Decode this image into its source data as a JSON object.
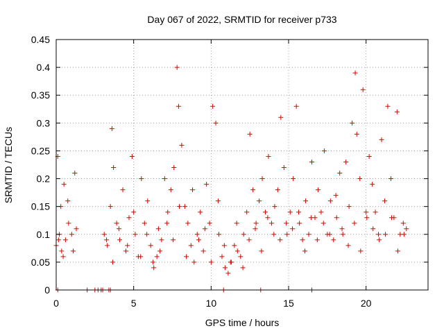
{
  "chart_data": {
    "type": "scatter",
    "title": "Day 067 of 2022, SRMTID for receiver p733",
    "xlabel": "GPS time / hours",
    "ylabel": "SRMTID / TECUs",
    "xlim": [
      0,
      24
    ],
    "ylim": [
      0,
      0.45
    ],
    "xticks": [
      0,
      5,
      10,
      15,
      20
    ],
    "xtick_labels": [
      "0",
      "5",
      "10",
      "15",
      "20"
    ],
    "yticks": [
      0,
      0.05,
      0.1,
      0.15,
      0.2,
      0.25,
      0.3,
      0.35,
      0.4,
      0.45
    ],
    "ytick_labels": [
      "0",
      "0.05",
      "0.1",
      "0.15",
      "0.2",
      "0.25",
      "0.3",
      "0.35",
      "0.4",
      "0.45"
    ],
    "grid": true,
    "marker": "plus",
    "color": "#dd0000",
    "series": [
      {
        "name": "SRMTID",
        "x": [
          0.0,
          0.1,
          0.2,
          0.3,
          0.35,
          0.5,
          0.6,
          0.8,
          1.0,
          1.2,
          1.3,
          3.1,
          3.3,
          3.5,
          3.6,
          3.7,
          3.9,
          4.1,
          4.3,
          4.5,
          4.7,
          4.9,
          5.1,
          5.3,
          5.5,
          5.7,
          5.9,
          6.1,
          6.3,
          6.5,
          6.6,
          6.8,
          7.0,
          7.2,
          7.4,
          7.6,
          7.8,
          7.9,
          8.1,
          8.3,
          8.5,
          8.7,
          8.9,
          9.1,
          9.3,
          9.5,
          9.7,
          9.9,
          10.1,
          10.3,
          10.5,
          10.7,
          10.9,
          11.1,
          11.3,
          11.5,
          11.7,
          11.9,
          12.1,
          12.3,
          12.5,
          12.7,
          12.9,
          13.1,
          13.3,
          13.5,
          13.7,
          13.9,
          14.1,
          14.3,
          14.5,
          14.7,
          14.9,
          15.1,
          15.3,
          15.5,
          15.7,
          15.9,
          16.1,
          16.3,
          16.5,
          16.7,
          16.9,
          17.1,
          17.3,
          17.5,
          17.7,
          17.9,
          18.1,
          18.3,
          18.5,
          18.7,
          18.9,
          19.1,
          19.3,
          19.4,
          19.6,
          19.8,
          20.0,
          20.2,
          20.4,
          20.6,
          20.8,
          21.0,
          21.2,
          21.4,
          21.6,
          21.8,
          22.0,
          22.2,
          22.4,
          22.6,
          0.15,
          0.45,
          0.75,
          1.1,
          3.25,
          3.65,
          4.05,
          4.6,
          5.0,
          5.45,
          5.85,
          6.25,
          6.7,
          7.15,
          7.55,
          7.95,
          8.4,
          8.8,
          9.2,
          9.6,
          10.0,
          10.45,
          10.85,
          11.25,
          11.65,
          12.05,
          12.45,
          12.85,
          13.25,
          13.65,
          14.05,
          14.45,
          14.85,
          15.25,
          15.65,
          16.05,
          16.45,
          16.85,
          17.25,
          17.65,
          18.05,
          18.45,
          18.85,
          19.25,
          19.65,
          20.05,
          20.45,
          20.85,
          21.25,
          21.65,
          22.05,
          22.45,
          0.1,
          2.0,
          2.5,
          2.7,
          2.9,
          3.0,
          3.4,
          3.5,
          10.8,
          13.2,
          16.5
        ],
        "y": [
          0.08,
          0.24,
          0.1,
          0.15,
          0.07,
          0.19,
          0.09,
          0.12,
          0.1,
          0.21,
          0.11,
          0.1,
          0.08,
          0.15,
          0.29,
          0.22,
          0.12,
          0.09,
          0.18,
          0.07,
          0.13,
          0.24,
          0.1,
          0.06,
          0.2,
          0.12,
          0.16,
          0.08,
          0.04,
          0.06,
          0.11,
          0.09,
          0.2,
          0.14,
          0.18,
          0.22,
          0.4,
          0.33,
          0.26,
          0.15,
          0.12,
          0.08,
          0.05,
          0.1,
          0.14,
          0.07,
          0.19,
          0.12,
          0.33,
          0.3,
          0.1,
          0.06,
          0.04,
          0.03,
          0.05,
          0.08,
          0.07,
          0.06,
          0.1,
          0.14,
          0.28,
          0.18,
          0.12,
          0.16,
          0.2,
          0.14,
          0.24,
          0.12,
          0.15,
          0.18,
          0.31,
          0.22,
          0.1,
          0.14,
          0.2,
          0.33,
          0.12,
          0.09,
          0.16,
          0.1,
          0.23,
          0.13,
          0.18,
          0.14,
          0.25,
          0.1,
          0.16,
          0.09,
          0.13,
          0.21,
          0.1,
          0.23,
          0.15,
          0.3,
          0.39,
          0.28,
          0.2,
          0.36,
          0.14,
          0.24,
          0.19,
          0.14,
          0.1,
          0.27,
          0.16,
          0.33,
          0.2,
          0.13,
          0.32,
          0.1,
          0.12,
          0.11,
          0.09,
          0.06,
          0.16,
          0.07,
          0.09,
          0.05,
          0.11,
          0.08,
          0.14,
          0.06,
          0.1,
          0.05,
          0.07,
          0.12,
          0.09,
          0.15,
          0.06,
          0.18,
          0.09,
          0.11,
          0.05,
          0.16,
          0.08,
          0.05,
          0.12,
          0.04,
          0.09,
          0.11,
          0.07,
          0.13,
          0.1,
          0.09,
          0.12,
          0.11,
          0.14,
          0.07,
          0.13,
          0.09,
          0.12,
          0.1,
          0.17,
          0.11,
          0.08,
          0.12,
          0.07,
          0.13,
          0.11,
          0.09,
          0.1,
          0.13,
          0.07,
          0.1,
          0.0,
          0.0,
          0.0,
          0.0,
          0.0,
          0.0,
          0.0,
          0.0,
          0.0,
          0.0,
          0.0
        ]
      }
    ]
  }
}
